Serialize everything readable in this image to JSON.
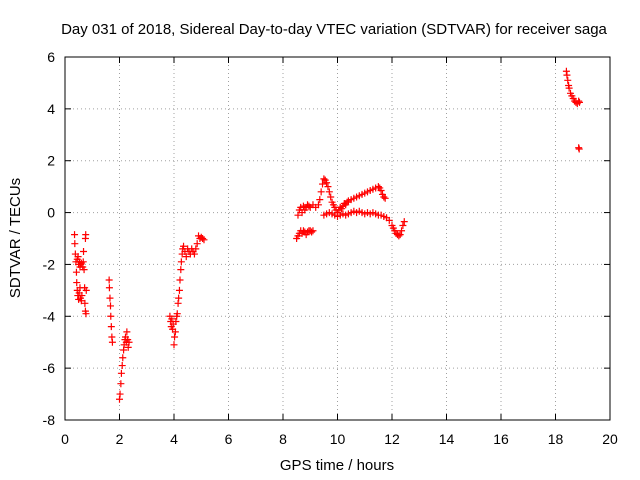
{
  "chart_data": {
    "type": "scatter",
    "title": "Day 031 of 2018, Sidereal Day-to-day VTEC variation (SDTVAR) for receiver saga",
    "xlabel": "GPS time / hours",
    "ylabel": "SDTVAR / TECUs",
    "xlim": [
      0,
      20
    ],
    "ylim": [
      -8,
      6
    ],
    "xticks": [
      0,
      2,
      4,
      6,
      8,
      10,
      12,
      14,
      16,
      18,
      20
    ],
    "yticks": [
      -8,
      -6,
      -4,
      -2,
      0,
      2,
      4,
      6
    ],
    "xtick_labels": [
      "0",
      "2",
      "4",
      "6",
      "8",
      "10",
      "12",
      "14",
      "16",
      "18",
      "20"
    ],
    "ytick_labels": [
      "-8",
      "-6",
      "-4",
      "-2",
      "0",
      "2",
      "4",
      "6"
    ],
    "grid": true,
    "marker": "+",
    "series": [
      {
        "name": "saga",
        "color": "#ff0000",
        "points": [
          [
            0.35,
            -0.85
          ],
          [
            0.36,
            -1.2
          ],
          [
            0.38,
            -1.6
          ],
          [
            0.4,
            -1.9
          ],
          [
            0.42,
            -2.3
          ],
          [
            0.43,
            -2.7
          ],
          [
            0.45,
            -3.0
          ],
          [
            0.47,
            -3.2
          ],
          [
            0.5,
            -3.35
          ],
          [
            0.52,
            -3.1
          ],
          [
            0.55,
            -2.9
          ],
          [
            0.57,
            -3.3
          ],
          [
            0.6,
            -3.4
          ],
          [
            0.62,
            -3.2
          ],
          [
            0.45,
            -1.8
          ],
          [
            0.48,
            -1.7
          ],
          [
            0.5,
            -2.0
          ],
          [
            0.53,
            -1.9
          ],
          [
            0.55,
            -2.1
          ],
          [
            0.58,
            -2.0
          ],
          [
            0.6,
            -1.95
          ],
          [
            0.65,
            -2.1
          ],
          [
            0.67,
            -1.9
          ],
          [
            0.68,
            -1.5
          ],
          [
            0.7,
            -2.2
          ],
          [
            0.72,
            -2.9
          ],
          [
            0.73,
            -3.5
          ],
          [
            0.75,
            -3.8
          ],
          [
            0.77,
            -3.9
          ],
          [
            0.78,
            -3.0
          ],
          [
            0.75,
            -1.0
          ],
          [
            0.76,
            -0.85
          ],
          [
            1.62,
            -2.6
          ],
          [
            1.63,
            -2.9
          ],
          [
            1.65,
            -3.3
          ],
          [
            1.67,
            -3.6
          ],
          [
            1.68,
            -4.0
          ],
          [
            1.7,
            -4.4
          ],
          [
            1.72,
            -4.8
          ],
          [
            1.74,
            -5.0
          ],
          [
            2.0,
            -7.2
          ],
          [
            2.02,
            -7.0
          ],
          [
            2.05,
            -6.6
          ],
          [
            2.07,
            -6.2
          ],
          [
            2.1,
            -5.9
          ],
          [
            2.12,
            -5.6
          ],
          [
            2.15,
            -5.3
          ],
          [
            2.17,
            -5.1
          ],
          [
            2.2,
            -4.9
          ],
          [
            2.22,
            -4.8
          ],
          [
            2.25,
            -5.0
          ],
          [
            2.27,
            -4.6
          ],
          [
            2.3,
            -4.9
          ],
          [
            2.32,
            -5.2
          ],
          [
            2.35,
            -5.0
          ],
          [
            3.85,
            -4.0
          ],
          [
            3.88,
            -4.2
          ],
          [
            3.9,
            -4.4
          ],
          [
            3.92,
            -4.1
          ],
          [
            3.95,
            -4.5
          ],
          [
            3.97,
            -4.3
          ],
          [
            4.0,
            -5.1
          ],
          [
            4.02,
            -4.8
          ],
          [
            4.05,
            -4.6
          ],
          [
            4.07,
            -4.2
          ],
          [
            4.1,
            -4.0
          ],
          [
            4.12,
            -3.9
          ],
          [
            4.15,
            -3.5
          ],
          [
            4.17,
            -3.3
          ],
          [
            4.2,
            -3.0
          ],
          [
            4.22,
            -2.6
          ],
          [
            4.25,
            -2.2
          ],
          [
            4.27,
            -1.9
          ],
          [
            4.3,
            -1.6
          ],
          [
            4.32,
            -1.4
          ],
          [
            4.35,
            -1.3
          ],
          [
            4.4,
            -1.5
          ],
          [
            4.45,
            -1.7
          ],
          [
            4.5,
            -1.4
          ],
          [
            4.55,
            -1.5
          ],
          [
            4.6,
            -1.6
          ],
          [
            4.65,
            -1.4
          ],
          [
            4.7,
            -1.5
          ],
          [
            4.75,
            -1.6
          ],
          [
            4.8,
            -1.4
          ],
          [
            4.85,
            -1.2
          ],
          [
            4.9,
            -0.9
          ],
          [
            4.95,
            -1.0
          ],
          [
            5.0,
            -0.95
          ],
          [
            5.05,
            -1.0
          ],
          [
            5.1,
            -1.05
          ],
          [
            8.5,
            -1.0
          ],
          [
            8.55,
            -0.9
          ],
          [
            8.6,
            -0.8
          ],
          [
            8.65,
            -0.7
          ],
          [
            8.7,
            -0.8
          ],
          [
            8.75,
            -0.7
          ],
          [
            8.8,
            -0.75
          ],
          [
            8.85,
            -0.85
          ],
          [
            8.9,
            -0.75
          ],
          [
            8.95,
            -0.7
          ],
          [
            9.0,
            -0.7
          ],
          [
            9.05,
            -0.75
          ],
          [
            9.1,
            -0.7
          ],
          [
            8.55,
            -0.1
          ],
          [
            8.6,
            0.1
          ],
          [
            8.65,
            0.2
          ],
          [
            8.7,
            0.0
          ],
          [
            8.75,
            0.25
          ],
          [
            8.8,
            0.1
          ],
          [
            8.85,
            0.2
          ],
          [
            8.9,
            0.3
          ],
          [
            8.95,
            0.25
          ],
          [
            9.0,
            0.2
          ],
          [
            9.1,
            0.3
          ],
          [
            9.2,
            0.2
          ],
          [
            9.3,
            0.3
          ],
          [
            9.35,
            0.5
          ],
          [
            9.4,
            0.8
          ],
          [
            9.45,
            1.1
          ],
          [
            9.5,
            1.3
          ],
          [
            9.55,
            1.25
          ],
          [
            9.6,
            1.15
          ],
          [
            9.65,
            1.0
          ],
          [
            9.7,
            0.8
          ],
          [
            9.75,
            0.6
          ],
          [
            9.8,
            0.4
          ],
          [
            9.85,
            0.3
          ],
          [
            9.9,
            0.2
          ],
          [
            9.95,
            0.1
          ],
          [
            10.0,
            0.0
          ],
          [
            10.05,
            0.1
          ],
          [
            10.1,
            0.2
          ],
          [
            10.15,
            0.15
          ],
          [
            10.2,
            0.25
          ],
          [
            10.25,
            0.35
          ],
          [
            10.3,
            0.3
          ],
          [
            10.35,
            0.4
          ],
          [
            10.4,
            0.45
          ],
          [
            10.5,
            0.5
          ],
          [
            10.6,
            0.55
          ],
          [
            10.7,
            0.6
          ],
          [
            10.8,
            0.65
          ],
          [
            10.9,
            0.7
          ],
          [
            11.0,
            0.75
          ],
          [
            11.1,
            0.8
          ],
          [
            11.2,
            0.85
          ],
          [
            11.3,
            0.9
          ],
          [
            11.4,
            0.95
          ],
          [
            11.5,
            1.0
          ],
          [
            11.55,
            0.95
          ],
          [
            11.6,
            0.85
          ],
          [
            11.65,
            0.7
          ],
          [
            11.7,
            0.6
          ],
          [
            11.75,
            0.55
          ],
          [
            9.5,
            -0.1
          ],
          [
            9.6,
            -0.05
          ],
          [
            9.7,
            0.0
          ],
          [
            9.8,
            -0.05
          ],
          [
            9.9,
            -0.1
          ],
          [
            10.0,
            -0.15
          ],
          [
            10.1,
            -0.1
          ],
          [
            10.2,
            -0.05
          ],
          [
            10.3,
            -0.1
          ],
          [
            10.4,
            -0.05
          ],
          [
            10.5,
            0.0
          ],
          [
            10.6,
            0.05
          ],
          [
            10.7,
            0.0
          ],
          [
            10.8,
            0.05
          ],
          [
            10.9,
            0.0
          ],
          [
            11.0,
            -0.05
          ],
          [
            11.1,
            0.0
          ],
          [
            11.2,
            -0.05
          ],
          [
            11.3,
            0.0
          ],
          [
            11.4,
            -0.05
          ],
          [
            11.5,
            -0.1
          ],
          [
            11.6,
            -0.1
          ],
          [
            11.7,
            -0.15
          ],
          [
            11.8,
            -0.2
          ],
          [
            11.9,
            -0.3
          ],
          [
            12.0,
            -0.5
          ],
          [
            12.05,
            -0.6
          ],
          [
            12.1,
            -0.7
          ],
          [
            12.15,
            -0.8
          ],
          [
            12.2,
            -0.85
          ],
          [
            12.25,
            -0.9
          ],
          [
            12.3,
            -0.85
          ],
          [
            12.35,
            -0.7
          ],
          [
            12.4,
            -0.5
          ],
          [
            12.45,
            -0.35
          ],
          [
            18.4,
            5.45
          ],
          [
            18.42,
            5.3
          ],
          [
            18.45,
            5.1
          ],
          [
            18.48,
            4.9
          ],
          [
            18.5,
            4.8
          ],
          [
            18.55,
            4.6
          ],
          [
            18.6,
            4.5
          ],
          [
            18.65,
            4.4
          ],
          [
            18.7,
            4.3
          ],
          [
            18.75,
            4.25
          ],
          [
            18.8,
            4.2
          ],
          [
            18.85,
            4.3
          ],
          [
            18.88,
            4.25
          ],
          [
            18.85,
            2.5
          ],
          [
            18.87,
            2.45
          ]
        ]
      }
    ]
  }
}
